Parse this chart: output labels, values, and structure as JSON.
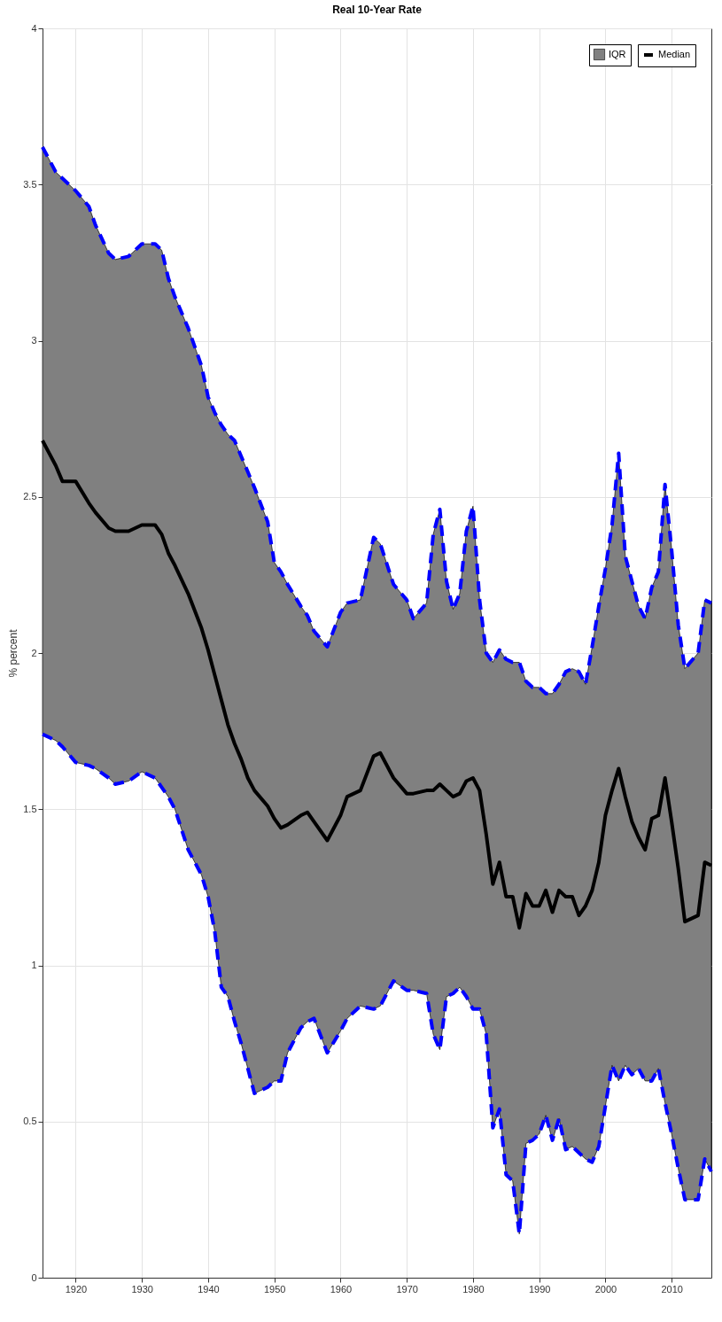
{
  "chart_data": {
    "type": "line",
    "title": "Real 10-Year Rate",
    "ylabel": "% percent",
    "xlim": [
      1915,
      2016
    ],
    "xticks": [
      1920,
      1930,
      1940,
      1950,
      1960,
      1970,
      1980,
      1990,
      2000,
      2010
    ],
    "ylim": [
      0,
      4
    ],
    "yticks": [
      0,
      0.5,
      1,
      1.5,
      2,
      2.5,
      3,
      3.5,
      4
    ],
    "grid": true,
    "legend": "top right",
    "annotations": [
      "IQR"
    ],
    "x": [
      1915,
      1917,
      1918,
      1920,
      1922,
      1923,
      1925,
      1926,
      1928,
      1930,
      1932,
      1933,
      1934,
      1935,
      1937,
      1939,
      1940,
      1941,
      1942,
      1943,
      1944,
      1945,
      1946,
      1947,
      1949,
      1950,
      1951,
      1952,
      1954,
      1955,
      1956,
      1958,
      1960,
      1961,
      1963,
      1965,
      1966,
      1968,
      1970,
      1971,
      1973,
      1974,
      1975,
      1976,
      1977,
      1978,
      1979,
      1980,
      1981,
      1982,
      1983,
      1984,
      1985,
      1986,
      1987,
      1988,
      1989,
      1990,
      1991,
      1992,
      1993,
      1994,
      1995,
      1996,
      1997,
      1998,
      1999,
      2000,
      2001,
      2002,
      2003,
      2004,
      2005,
      2006,
      2007,
      2008,
      2009,
      2010,
      2011,
      2012,
      2014,
      2015,
      2016
    ],
    "series": [
      {
        "name": "Median",
        "type": "line",
        "color": "#000000",
        "values": [
          2.68,
          2.6,
          2.55,
          2.55,
          2.48,
          2.45,
          2.4,
          2.39,
          2.39,
          2.41,
          2.41,
          2.38,
          2.32,
          2.28,
          2.19,
          2.08,
          2.01,
          1.93,
          1.85,
          1.77,
          1.71,
          1.66,
          1.6,
          1.56,
          1.51,
          1.47,
          1.44,
          1.45,
          1.48,
          1.49,
          1.46,
          1.4,
          1.48,
          1.54,
          1.56,
          1.67,
          1.68,
          1.6,
          1.55,
          1.55,
          1.56,
          1.56,
          1.58,
          1.56,
          1.54,
          1.55,
          1.59,
          1.6,
          1.56,
          1.42,
          1.26,
          1.33,
          1.22,
          1.22,
          1.12,
          1.23,
          1.19,
          1.19,
          1.24,
          1.17,
          1.24,
          1.22,
          1.22,
          1.16,
          1.19,
          1.24,
          1.33,
          1.48,
          1.56,
          1.63,
          1.54,
          1.46,
          1.41,
          1.37,
          1.47,
          1.48,
          1.6,
          1.46,
          1.31,
          1.14,
          1.16,
          1.33,
          1.32
        ],
        "lower": [
          1.74,
          1.72,
          1.7,
          1.65,
          1.64,
          1.63,
          1.6,
          1.58,
          1.59,
          1.62,
          1.6,
          1.57,
          1.54,
          1.5,
          1.37,
          1.29,
          1.22,
          1.11,
          0.93,
          0.9,
          0.82,
          0.75,
          0.67,
          0.59,
          0.61,
          0.63,
          0.63,
          0.72,
          0.8,
          0.82,
          0.83,
          0.72,
          0.79,
          0.83,
          0.87,
          0.86,
          0.87,
          0.95,
          0.92,
          0.92,
          0.91,
          0.78,
          0.73,
          0.9,
          0.91,
          0.93,
          0.9,
          0.86,
          0.86,
          0.78,
          0.48,
          0.54,
          0.33,
          0.31,
          0.14,
          0.43,
          0.44,
          0.46,
          0.52,
          0.44,
          0.51,
          0.41,
          0.42,
          0.4,
          0.38,
          0.37,
          0.42,
          0.55,
          0.68,
          0.63,
          0.68,
          0.65,
          0.67,
          0.63,
          0.63,
          0.67,
          0.56,
          0.46,
          0.35,
          0.25,
          0.25,
          0.38,
          0.34
        ],
        "upper": [
          3.62,
          3.54,
          3.52,
          3.48,
          3.43,
          3.37,
          3.28,
          3.26,
          3.27,
          3.31,
          3.31,
          3.29,
          3.2,
          3.14,
          3.04,
          2.92,
          2.82,
          2.77,
          2.73,
          2.7,
          2.68,
          2.63,
          2.58,
          2.53,
          2.42,
          2.29,
          2.26,
          2.22,
          2.15,
          2.12,
          2.07,
          2.02,
          2.13,
          2.16,
          2.17,
          2.37,
          2.35,
          2.22,
          2.17,
          2.11,
          2.16,
          2.38,
          2.46,
          2.23,
          2.14,
          2.19,
          2.39,
          2.47,
          2.17,
          2,
          1.97,
          2.01,
          1.98,
          1.97,
          1.97,
          1.91,
          1.89,
          1.89,
          1.87,
          1.87,
          1.9,
          1.94,
          1.95,
          1.94,
          1.9,
          2.02,
          2.15,
          2.27,
          2.41,
          2.64,
          2.31,
          2.23,
          2.15,
          2.11,
          2.21,
          2.26,
          2.54,
          2.33,
          2.09,
          1.95,
          2,
          2.17,
          2.16
        ]
      },
      {
        "type": "line",
        "color": "#0000ff",
        "line_style": "dashed",
        "values": [
          3.62,
          3.54,
          3.52,
          3.48,
          3.43,
          3.37,
          3.28,
          3.26,
          3.27,
          3.31,
          3.31,
          3.29,
          3.2,
          3.14,
          3.04,
          2.92,
          2.82,
          2.77,
          2.73,
          2.7,
          2.68,
          2.63,
          2.58,
          2.53,
          2.42,
          2.29,
          2.26,
          2.22,
          2.15,
          2.12,
          2.07,
          2.02,
          2.13,
          2.16,
          2.17,
          2.37,
          2.35,
          2.22,
          2.17,
          2.11,
          2.16,
          2.38,
          2.46,
          2.23,
          2.14,
          2.19,
          2.39,
          2.47,
          2.17,
          2,
          1.97,
          2.01,
          1.98,
          1.97,
          1.97,
          1.91,
          1.89,
          1.89,
          1.87,
          1.87,
          1.9,
          1.94,
          1.95,
          1.94,
          1.9,
          2.02,
          2.15,
          2.27,
          2.41,
          2.64,
          2.31,
          2.23,
          2.15,
          2.11,
          2.21,
          2.26,
          2.54,
          2.33,
          2.09,
          1.95,
          2,
          2.17,
          2.16
        ]
      },
      {
        "type": "line",
        "color": "#0000ff",
        "line_style": "dashed",
        "values": [
          1.74,
          1.72,
          1.7,
          1.65,
          1.64,
          1.63,
          1.6,
          1.58,
          1.59,
          1.62,
          1.6,
          1.57,
          1.54,
          1.5,
          1.37,
          1.29,
          1.22,
          1.11,
          0.93,
          0.9,
          0.82,
          0.75,
          0.67,
          0.59,
          0.61,
          0.63,
          0.63,
          0.72,
          0.8,
          0.82,
          0.83,
          0.72,
          0.79,
          0.83,
          0.87,
          0.86,
          0.87,
          0.95,
          0.92,
          0.92,
          0.91,
          0.78,
          0.73,
          0.9,
          0.91,
          0.93,
          0.9,
          0.86,
          0.86,
          0.78,
          0.48,
          0.54,
          0.33,
          0.31,
          0.14,
          0.43,
          0.44,
          0.46,
          0.52,
          0.44,
          0.51,
          0.41,
          0.42,
          0.4,
          0.38,
          0.37,
          0.42,
          0.55,
          0.68,
          0.63,
          0.68,
          0.65,
          0.67,
          0.63,
          0.63,
          0.67,
          0.56,
          0.46,
          0.35,
          0.25,
          0.25,
          0.38,
          0.34
        ]
      }
    ]
  }
}
